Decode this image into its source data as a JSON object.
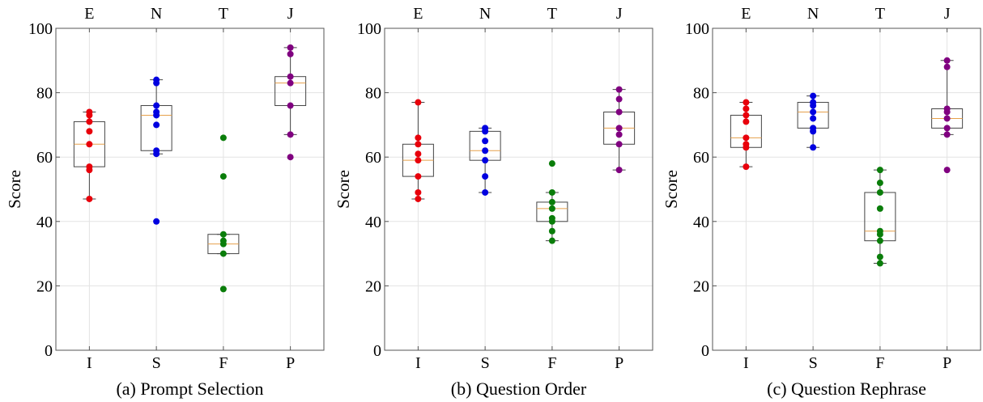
{
  "figure": {
    "panels": [
      {
        "caption": "(a) Prompt Selection"
      },
      {
        "caption": "(b) Question Order"
      },
      {
        "caption": "(c) Question Rephrase"
      }
    ]
  },
  "colors": {
    "dimension_colors": [
      "#e8000b",
      "#0000e0",
      "#0a7d0a",
      "#800080"
    ],
    "median": "#e6a04b",
    "box": "#444444",
    "grid": "#e3e3e3"
  },
  "chart_data": [
    {
      "type": "box",
      "title": "(a) Prompt Selection",
      "ylabel": "Score",
      "ylim": [
        0,
        100
      ],
      "yticks": [
        0,
        20,
        40,
        60,
        80,
        100
      ],
      "categories_bottom": [
        "I",
        "S",
        "F",
        "P"
      ],
      "categories_top": [
        "E",
        "N",
        "T",
        "J"
      ],
      "grid": true,
      "boxes": [
        {
          "q1": 57,
          "median": 64,
          "q3": 71,
          "whisker_low": 47,
          "whisker_high": 74
        },
        {
          "q1": 62,
          "median": 73,
          "q3": 76,
          "whisker_low": 61,
          "whisker_high": 84
        },
        {
          "q1": 30,
          "median": 33,
          "q3": 36,
          "whisker_low": 30,
          "whisker_high": 36
        },
        {
          "q1": 76,
          "median": 83,
          "q3": 85,
          "whisker_low": 67,
          "whisker_high": 94
        }
      ],
      "points": [
        [
          47,
          56,
          57,
          64,
          68,
          71,
          73,
          74
        ],
        [
          40,
          61,
          62,
          70,
          73,
          74,
          76,
          83,
          84
        ],
        [
          19,
          30,
          33,
          34,
          36,
          54,
          66
        ],
        [
          60,
          67,
          76,
          83,
          85,
          92,
          94
        ]
      ]
    },
    {
      "type": "box",
      "title": "(b) Question Order",
      "ylabel": "Score",
      "ylim": [
        0,
        100
      ],
      "yticks": [
        0,
        20,
        40,
        60,
        80,
        100
      ],
      "categories_bottom": [
        "I",
        "S",
        "F",
        "P"
      ],
      "categories_top": [
        "E",
        "N",
        "T",
        "J"
      ],
      "grid": true,
      "boxes": [
        {
          "q1": 54,
          "median": 59,
          "q3": 64,
          "whisker_low": 47,
          "whisker_high": 77
        },
        {
          "q1": 59,
          "median": 62,
          "q3": 68,
          "whisker_low": 49,
          "whisker_high": 69
        },
        {
          "q1": 40,
          "median": 44,
          "q3": 46,
          "whisker_low": 34,
          "whisker_high": 49
        },
        {
          "q1": 64,
          "median": 69,
          "q3": 74,
          "whisker_low": 56,
          "whisker_high": 81
        }
      ],
      "points": [
        [
          47,
          49,
          54,
          59,
          61,
          64,
          66,
          77
        ],
        [
          49,
          54,
          59,
          62,
          65,
          68,
          69
        ],
        [
          34,
          37,
          40,
          41,
          44,
          46,
          49,
          58
        ],
        [
          56,
          64,
          67,
          69,
          74,
          78,
          81
        ]
      ]
    },
    {
      "type": "box",
      "title": "(c) Question Rephrase",
      "ylabel": "Score",
      "ylim": [
        0,
        100
      ],
      "yticks": [
        0,
        20,
        40,
        60,
        80,
        100
      ],
      "categories_bottom": [
        "I",
        "S",
        "F",
        "P"
      ],
      "categories_top": [
        "E",
        "N",
        "T",
        "J"
      ],
      "grid": true,
      "boxes": [
        {
          "q1": 63,
          "median": 66,
          "q3": 73,
          "whisker_low": 57,
          "whisker_high": 77
        },
        {
          "q1": 69,
          "median": 74,
          "q3": 77,
          "whisker_low": 63,
          "whisker_high": 79
        },
        {
          "q1": 34,
          "median": 37,
          "q3": 49,
          "whisker_low": 27,
          "whisker_high": 56
        },
        {
          "q1": 69,
          "median": 72,
          "q3": 75,
          "whisker_low": 67,
          "whisker_high": 90
        }
      ],
      "points": [
        [
          57,
          63,
          64,
          66,
          71,
          73,
          75,
          77
        ],
        [
          63,
          68,
          69,
          72,
          74,
          76,
          77,
          79
        ],
        [
          27,
          29,
          34,
          36,
          37,
          44,
          49,
          52,
          56
        ],
        [
          56,
          67,
          69,
          72,
          74,
          75,
          88,
          90
        ]
      ]
    }
  ]
}
